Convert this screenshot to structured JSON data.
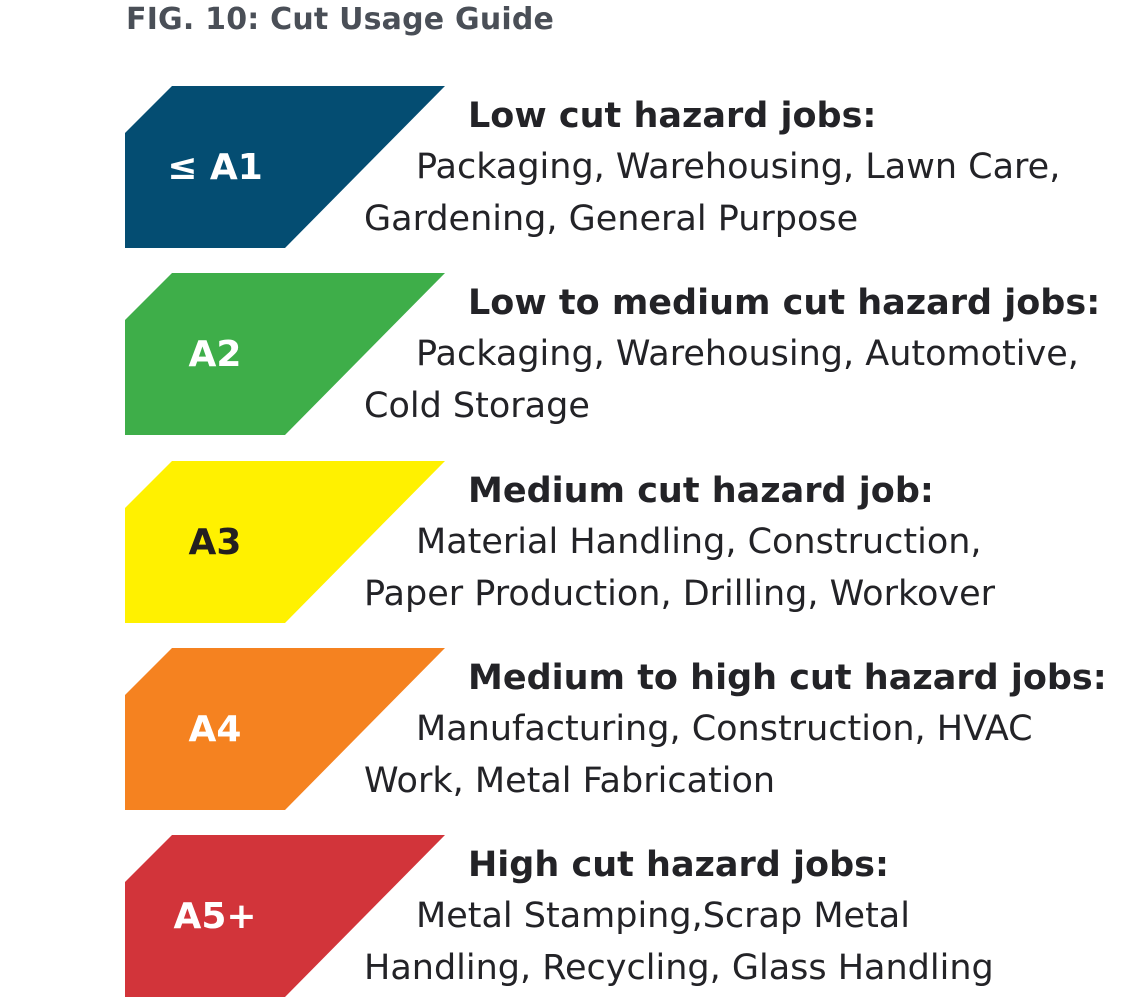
{
  "title": "FIG. 10: Cut Usage Guide",
  "levels": [
    {
      "label": "≤ A1",
      "color": "#044D72",
      "label_color": "#FFFFFF",
      "heading": "Low cut hazard jobs:",
      "line1": "Packaging, Warehousing, Lawn Care,",
      "line2": "Gardening, General Purpose"
    },
    {
      "label": "A2",
      "color": "#3EAE49",
      "label_color": "#FFFFFF",
      "heading": "Low to medium cut hazard jobs:",
      "line1": "Packaging, Warehousing, Automotive,",
      "line2": "Cold Storage"
    },
    {
      "label": "A3",
      "color": "#FFF100",
      "label_color": "#231F20",
      "heading": "Medium cut hazard job:",
      "line1": "Material Handling, Construction,",
      "line2": "Paper Production, Drilling, Workover"
    },
    {
      "label": "A4",
      "color": "#F58220",
      "label_color": "#FFFFFF",
      "heading": "Medium to high cut hazard jobs:",
      "line1": "Manufacturing, Construction, HVAC",
      "line2": "Work, Metal Fabrication"
    },
    {
      "label": "A5+",
      "color": "#D2343A",
      "label_color": "#FFFFFF",
      "heading": "High cut hazard jobs:",
      "line1": "Metal Stamping,Scrap Metal",
      "line2": "Handling, Recycling, Glass Handling"
    }
  ]
}
